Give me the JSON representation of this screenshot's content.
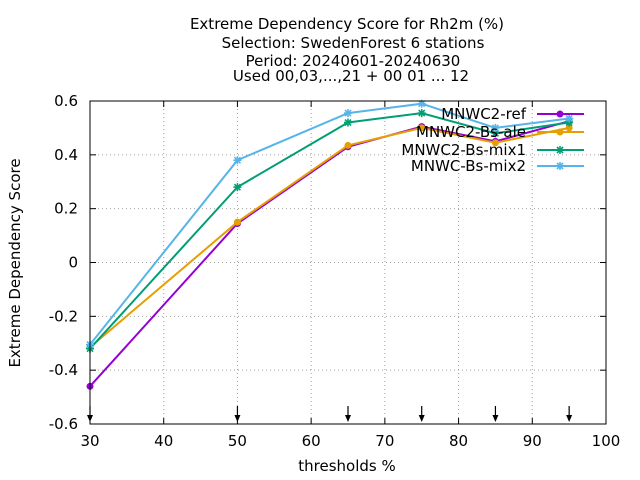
{
  "chart_data": {
    "type": "line",
    "title_lines": [
      "Extreme Dependency Score  for Rh2m (%)",
      "Selection: SwedenForest      6 stations",
      "Period: 20240601-20240630",
      "Used 00,03,...,21 + 00 01 ... 12"
    ],
    "xlabel": "thresholds %",
    "ylabel": "Extreme Dependency Score",
    "xlim": [
      30,
      100
    ],
    "ylim": [
      -0.6,
      0.6
    ],
    "x_ticks": [
      30,
      40,
      50,
      60,
      70,
      80,
      90,
      100
    ],
    "y_ticks": [
      -0.6,
      -0.4,
      -0.2,
      0,
      0.2,
      0.4,
      0.6
    ],
    "x_tick_labels": [
      "30",
      "40",
      "50",
      "60",
      "70",
      "80",
      "90",
      "100"
    ],
    "y_tick_labels": [
      "-0.6",
      "-0.4",
      "-0.2",
      "0",
      "0.2",
      "0.4",
      "0.6"
    ],
    "grid": true,
    "legend_position": "top-right",
    "threshold_markers": [
      30,
      50,
      65,
      75,
      85,
      95
    ],
    "x": [
      30,
      50,
      65,
      75,
      85,
      95
    ],
    "series": [
      {
        "name": "MNWC2-ref",
        "color": "#9400d3",
        "marker": "circle",
        "values": [
          -0.46,
          0.145,
          0.43,
          0.505,
          0.45,
          0.525
        ]
      },
      {
        "name": "MNWC2-Bs-ale",
        "color": "#e69f00",
        "marker": "circle",
        "values": [
          -0.315,
          0.15,
          0.435,
          0.5,
          0.445,
          0.5
        ]
      },
      {
        "name": "MNWC2-Bs-mix1",
        "color": "#009e73",
        "marker": "asterisk",
        "values": [
          -0.32,
          0.28,
          0.52,
          0.555,
          0.48,
          0.52
        ]
      },
      {
        "name": "MNWC-Bs-mix2",
        "color": "#56b4e9",
        "marker": "asterisk",
        "values": [
          -0.305,
          0.38,
          0.555,
          0.59,
          0.5,
          0.535
        ]
      }
    ]
  }
}
